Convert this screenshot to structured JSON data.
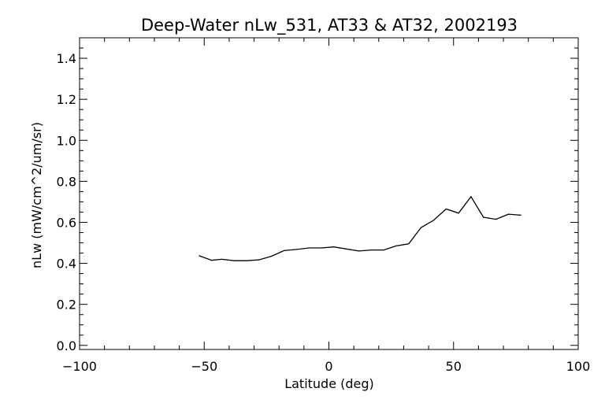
{
  "chart_data": {
    "type": "line",
    "title": "Deep-Water nLw_531, AT33 & AT32, 2002193",
    "xlabel": "Latitude (deg)",
    "ylabel": "nLw (mW/cm^2/um/sr)",
    "xlim": [
      -100,
      100
    ],
    "ylim": [
      -0.02,
      1.5
    ],
    "x_ticks": [
      -100,
      -50,
      0,
      50,
      100
    ],
    "x_tick_labels": [
      "−100",
      "−50",
      "0",
      "50",
      "100"
    ],
    "y_ticks": [
      0.0,
      0.2,
      0.4,
      0.6,
      0.8,
      1.0,
      1.2,
      1.4
    ],
    "y_tick_labels": [
      "0.0",
      "0.2",
      "0.4",
      "0.6",
      "0.8",
      "1.0",
      "1.2",
      "1.4"
    ],
    "grid": false,
    "series": [
      {
        "x": [
          -52,
          -47,
          -43,
          -38,
          -33,
          -28,
          -23,
          -18,
          -13,
          -8,
          -3,
          2,
          7,
          12,
          17,
          22,
          27,
          32,
          37,
          42,
          47,
          52,
          57,
          62,
          67,
          72,
          77
        ],
        "y": [
          0.437,
          0.415,
          0.42,
          0.413,
          0.413,
          0.417,
          0.435,
          0.462,
          0.468,
          0.475,
          0.475,
          0.48,
          0.47,
          0.46,
          0.465,
          0.465,
          0.485,
          0.495,
          0.575,
          0.61,
          0.665,
          0.645,
          0.725,
          0.625,
          0.615,
          0.64,
          0.635
        ],
        "color": "#000000"
      }
    ]
  }
}
